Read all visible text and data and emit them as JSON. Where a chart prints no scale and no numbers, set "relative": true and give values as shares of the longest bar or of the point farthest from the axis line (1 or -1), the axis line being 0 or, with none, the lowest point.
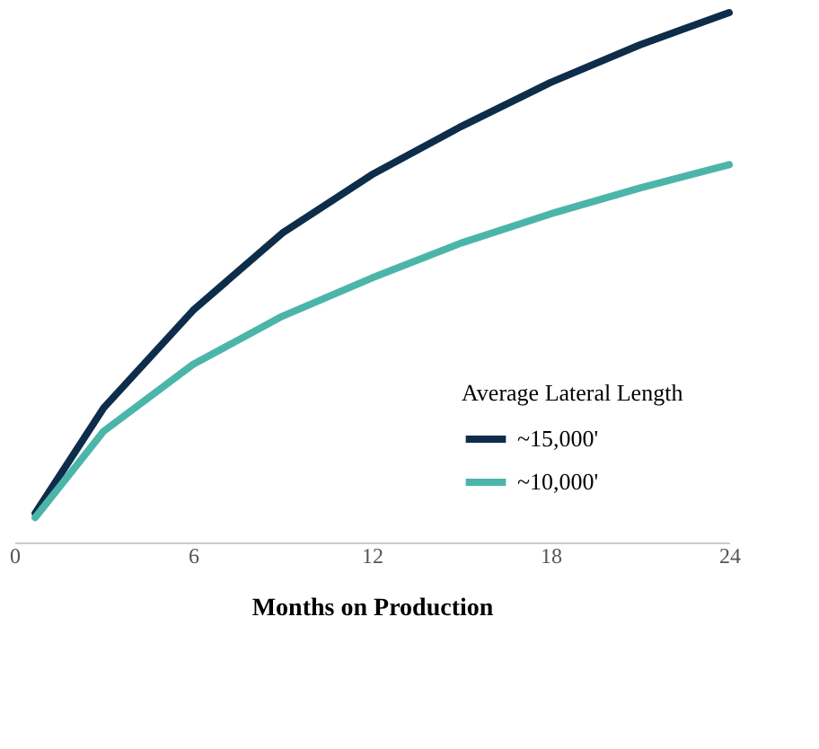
{
  "chart_data": {
    "type": "line",
    "relative": true,
    "xlabel": "Months on Production",
    "xlim": [
      0,
      24
    ],
    "xticks": [
      0,
      6,
      12,
      18,
      24
    ],
    "legend_title": "Average Lateral Length",
    "legend": "bottom right",
    "grid": false,
    "marker": "none",
    "line_style": "solid",
    "series": [
      {
        "name": "~15,000'",
        "color": "#0d2d4a",
        "x": [
          0.7,
          3,
          6,
          9,
          12,
          15,
          18,
          21,
          24
        ],
        "values": [
          0.055,
          0.254,
          0.438,
          0.584,
          0.694,
          0.785,
          0.868,
          0.939,
          1
        ]
      },
      {
        "name": "~10,000'",
        "color": "#4cb5a9",
        "x": [
          0.7,
          3,
          6,
          9,
          12,
          15,
          18,
          21,
          24
        ],
        "values": [
          0.047,
          0.21,
          0.336,
          0.427,
          0.499,
          0.565,
          0.62,
          0.669,
          0.713
        ]
      }
    ]
  }
}
